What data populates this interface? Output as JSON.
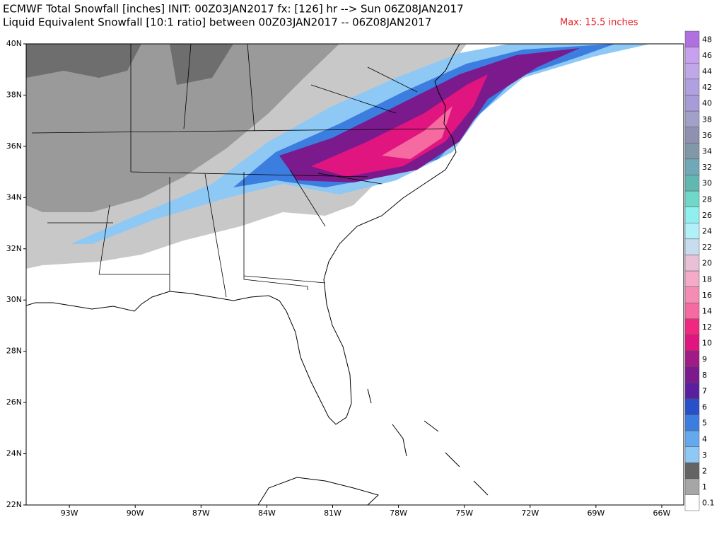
{
  "header": {
    "title": "ECMWF Total Snowfall [inches] INIT: 00Z03JAN2017 fx: [126] hr --> Sun 06Z08JAN2017",
    "subtitle": "Liquid Equivalent Snowfall [10:1 ratio] between 00Z03JAN2017 -- 06Z08JAN2017",
    "max_label": "Max: 15.5 inches"
  },
  "map": {
    "lat_ticks": [
      {
        "value": 40,
        "label": "40N"
      },
      {
        "value": 38,
        "label": "38N"
      },
      {
        "value": 36,
        "label": "36N"
      },
      {
        "value": 34,
        "label": "34N"
      },
      {
        "value": 32,
        "label": "32N"
      },
      {
        "value": 30,
        "label": "30N"
      },
      {
        "value": 28,
        "label": "28N"
      },
      {
        "value": 26,
        "label": "26N"
      },
      {
        "value": 24,
        "label": "24N"
      },
      {
        "value": 22,
        "label": "22N"
      }
    ],
    "lon_ticks": [
      {
        "value": -93,
        "label": "93W"
      },
      {
        "value": -90,
        "label": "90W"
      },
      {
        "value": -87,
        "label": "87W"
      },
      {
        "value": -84,
        "label": "84W"
      },
      {
        "value": -81,
        "label": "81W"
      },
      {
        "value": -78,
        "label": "78W"
      },
      {
        "value": -75,
        "label": "75W"
      },
      {
        "value": -72,
        "label": "72W"
      },
      {
        "value": -69,
        "label": "69W"
      },
      {
        "value": -66,
        "label": "66W"
      }
    ]
  },
  "legend": {
    "levels": [
      {
        "value": 0.1,
        "color": "#ffffff"
      },
      {
        "value": 1,
        "color": "#a6a6a6"
      },
      {
        "value": 2,
        "color": "#646464"
      },
      {
        "value": 3,
        "color": "#8ec8f5"
      },
      {
        "value": 4,
        "color": "#64a8ee"
      },
      {
        "value": 5,
        "color": "#3c7ee0"
      },
      {
        "value": 6,
        "color": "#2850c8"
      },
      {
        "value": 7,
        "color": "#5a1fa0"
      },
      {
        "value": 8,
        "color": "#7a1a8c"
      },
      {
        "value": 9,
        "color": "#a01a88"
      },
      {
        "value": 10,
        "color": "#e0157f"
      },
      {
        "value": 12,
        "color": "#f0287f"
      },
      {
        "value": 14,
        "color": "#f56aa0"
      },
      {
        "value": 16,
        "color": "#f58cb4"
      },
      {
        "value": 18,
        "color": "#f5aac8"
      },
      {
        "value": 20,
        "color": "#e8c0d8"
      },
      {
        "value": 22,
        "color": "#c8dcf0"
      },
      {
        "value": 24,
        "color": "#b0f0f8"
      },
      {
        "value": 26,
        "color": "#90f0f0"
      },
      {
        "value": 28,
        "color": "#70d8c8"
      },
      {
        "value": 30,
        "color": "#60b8b0"
      },
      {
        "value": 32,
        "color": "#70a8b8"
      },
      {
        "value": 34,
        "color": "#8098a8"
      },
      {
        "value": 36,
        "color": "#9090b0"
      },
      {
        "value": 38,
        "color": "#a0a0c8"
      },
      {
        "value": 40,
        "color": "#a89cd8"
      },
      {
        "value": 42,
        "color": "#b0a0e0"
      },
      {
        "value": 44,
        "color": "#c0a8e8"
      },
      {
        "value": 46,
        "color": "#c8a0f0"
      },
      {
        "value": 48,
        "color": "#b070e0"
      }
    ]
  }
}
